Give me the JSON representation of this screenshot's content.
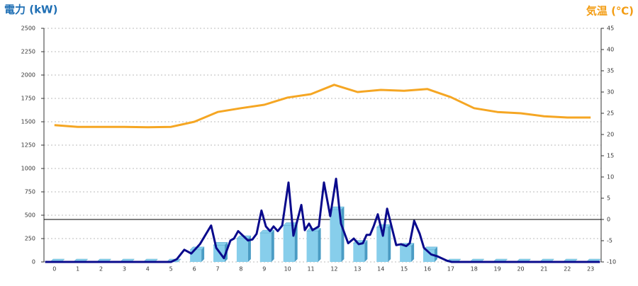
{
  "chart_data": {
    "type": "combo",
    "title_left": "電力 (kW)",
    "title_right": "気温 (℃)",
    "left_color": "#1f6fb4",
    "right_color": "#f39c12",
    "categories": [
      "0",
      "1",
      "2",
      "3",
      "4",
      "5",
      "6",
      "7",
      "8",
      "9",
      "10",
      "11",
      "12",
      "13",
      "14",
      "15",
      "16",
      "17",
      "18",
      "19",
      "20",
      "21",
      "22",
      "23"
    ],
    "xlim": [
      -0.45,
      23.45
    ],
    "ylim": [
      0,
      2500
    ],
    "yticks": [
      0,
      250,
      500,
      750,
      1000,
      1250,
      1500,
      1750,
      2000,
      2250,
      2500
    ],
    "y2lim": [
      -10,
      45
    ],
    "y2ticks": [
      -10,
      -5,
      0,
      5,
      10,
      15,
      20,
      25,
      30,
      35,
      40,
      45
    ],
    "reference_line_y2": 0,
    "grid": true,
    "series": [
      {
        "type": "bar",
        "color": "#87ceeb",
        "values": [
          0,
          0,
          0,
          0,
          0,
          0,
          130,
          180,
          250,
          310,
          390,
          330,
          560,
          200,
          370,
          170,
          130,
          0,
          0,
          0,
          0,
          0,
          0,
          0
        ]
      },
      {
        "type": "line",
        "color": "#0a0a8c",
        "x": [
          -0.4,
          5.0,
          5.25,
          5.57,
          5.87,
          6.24,
          6.72,
          6.94,
          7.27,
          7.55,
          7.7,
          7.88,
          8.3,
          8.49,
          8.67,
          8.88,
          9.07,
          9.25,
          9.4,
          9.58,
          9.77,
          10.04,
          10.25,
          10.59,
          10.74,
          10.92,
          11.07,
          11.34,
          11.56,
          11.83,
          12.08,
          12.29,
          12.6,
          12.84,
          13.05,
          13.23,
          13.39,
          13.54,
          13.69,
          13.87,
          14.09,
          14.27,
          14.48,
          14.66,
          14.87,
          15.09,
          15.24,
          15.43,
          15.67,
          15.85,
          16.16,
          16.43,
          16.82,
          17.04,
          23.4
        ],
        "values": [
          0,
          0,
          30,
          130,
          90,
          190,
          390,
          150,
          40,
          230,
          250,
          330,
          230,
          240,
          300,
          550,
          380,
          330,
          380,
          330,
          390,
          850,
          280,
          610,
          340,
          410,
          340,
          380,
          850,
          490,
          890,
          410,
          200,
          250,
          190,
          200,
          290,
          290,
          380,
          510,
          280,
          570,
          360,
          180,
          190,
          170,
          200,
          440,
          300,
          150,
          80,
          60,
          15,
          0,
          0
        ]
      },
      {
        "type": "line",
        "color": "#f5a623",
        "axis": "y2",
        "values": [
          22.2,
          21.8,
          21.8,
          21.8,
          21.7,
          21.8,
          23,
          25.3,
          26.2,
          27,
          28.7,
          29.5,
          31.7,
          30,
          30.5,
          30.3,
          30.7,
          28.8,
          26.2,
          25.3,
          25,
          24.3,
          24,
          24
        ]
      }
    ]
  }
}
